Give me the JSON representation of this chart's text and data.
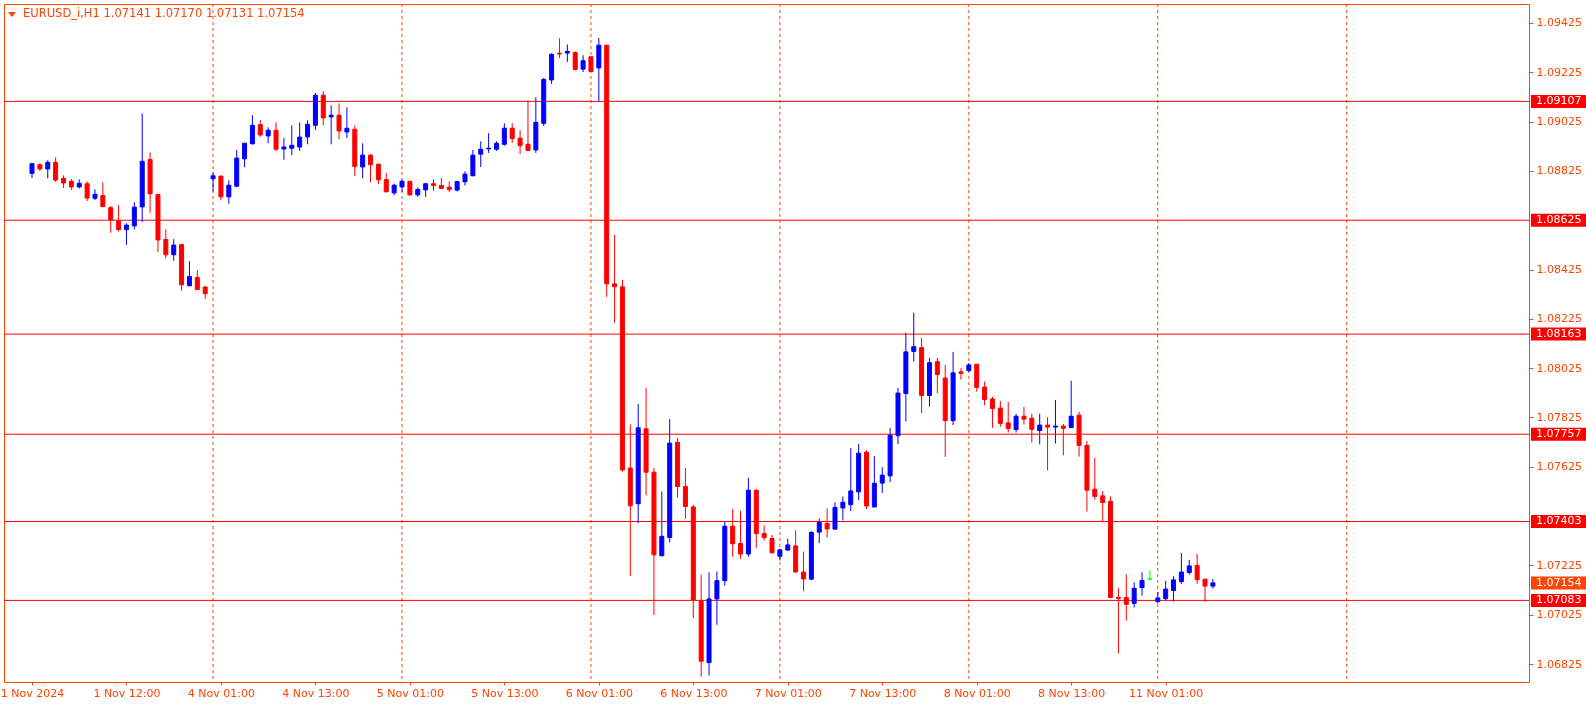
{
  "chart_data": {
    "type": "candlestick",
    "title": "EURUSD_i,H1 1.07141 1.07170 1.07131 1.07154",
    "categories": [
      "1 Nov 2024",
      null,
      null,
      null,
      null,
      null,
      null,
      null,
      null,
      null,
      null,
      null,
      "1 Nov 12:00",
      null,
      null,
      null,
      null,
      null,
      null,
      null,
      null,
      null,
      null,
      null,
      "4 Nov 01:00",
      null,
      null,
      null,
      null,
      null,
      null,
      null,
      null,
      null,
      null,
      null,
      "4 Nov 13:00",
      null,
      null,
      null,
      null,
      null,
      null,
      null,
      null,
      null,
      null,
      null,
      "5 Nov 01:00",
      null,
      null,
      null,
      null,
      null,
      null,
      null,
      null,
      null,
      null,
      null,
      "5 Nov 13:00",
      null,
      null,
      null,
      null,
      null,
      null,
      null,
      null,
      null,
      null,
      null,
      "6 Nov 01:00",
      null,
      null,
      null,
      null,
      null,
      null,
      null,
      null,
      null,
      null,
      null,
      "6 Nov 13:00",
      null,
      null,
      null,
      null,
      null,
      null,
      null,
      null,
      null,
      null,
      null,
      "7 Nov 01:00",
      null,
      null,
      null,
      null,
      null,
      null,
      null,
      null,
      null,
      null,
      null,
      "7 Nov 13:00",
      null,
      null,
      null,
      null,
      null,
      null,
      null,
      null,
      null,
      null,
      null,
      "8 Nov 01:00",
      null,
      null,
      null,
      null,
      null,
      null,
      null,
      null,
      null,
      null,
      null,
      "8 Nov 13:00",
      null,
      null,
      null,
      null,
      null,
      null,
      null,
      null,
      null,
      null,
      null,
      "11 Nov 01:00",
      null,
      null,
      null,
      null,
      null,
      null,
      null,
      null,
      null,
      null,
      null,
      null,
      null,
      null,
      null,
      null,
      null,
      null,
      null,
      null,
      null,
      null,
      null,
      null,
      null,
      null,
      null,
      null,
      null,
      null,
      null,
      null,
      null,
      null,
      null,
      null,
      null,
      null,
      null,
      null,
      null,
      null,
      null,
      null,
      null,
      null
    ],
    "ohlc": [
      [
        1.08815,
        1.08858,
        1.08796,
        1.08854
      ],
      [
        1.0885,
        1.08856,
        1.08825,
        1.08833
      ],
      [
        1.08833,
        1.08868,
        1.08795,
        1.0886
      ],
      [
        1.0886,
        1.0888,
        1.0878,
        1.08788
      ],
      [
        1.08795,
        1.08807,
        1.08756,
        1.08776
      ],
      [
        1.08783,
        1.08792,
        1.08748,
        1.0876
      ],
      [
        1.0876,
        1.08791,
        1.08754,
        1.08775
      ],
      [
        1.08773,
        1.08783,
        1.08703,
        1.08715
      ],
      [
        1.08714,
        1.0875,
        1.08707,
        1.0873
      ],
      [
        1.08725,
        1.08779,
        1.08679,
        1.0868
      ],
      [
        1.08676,
        1.08682,
        1.08574,
        1.08626
      ],
      [
        1.08622,
        1.08686,
        1.08579,
        1.08587
      ],
      [
        1.08587,
        1.08613,
        1.08525,
        1.08605
      ],
      [
        1.08602,
        1.08698,
        1.08587,
        1.08678
      ],
      [
        1.08679,
        1.09058,
        1.08618,
        1.08864
      ],
      [
        1.08871,
        1.089,
        1.08655,
        1.08732
      ],
      [
        1.08729,
        1.08729,
        1.08495,
        1.08545
      ],
      [
        1.08547,
        1.08588,
        1.08471,
        1.08485
      ],
      [
        1.08485,
        1.08548,
        1.0846,
        1.08524
      ],
      [
        1.08526,
        1.08526,
        1.08339,
        1.08363
      ],
      [
        1.08359,
        1.08459,
        1.08359,
        1.08397
      ],
      [
        1.08393,
        1.08422,
        1.08343,
        1.08344
      ],
      [
        1.08354,
        1.08358,
        1.08306,
        1.08327
      ],
      [
        1.08793,
        1.08818,
        1.08742,
        1.08805
      ],
      [
        1.08804,
        1.08805,
        1.08706,
        1.0872
      ],
      [
        1.0872,
        1.08787,
        1.08692,
        1.08767
      ],
      [
        1.08763,
        1.0891,
        1.0876,
        1.08877
      ],
      [
        1.08874,
        1.0894,
        1.0884,
        1.08937
      ],
      [
        1.08935,
        1.09051,
        1.08932,
        1.0901
      ],
      [
        1.09013,
        1.09032,
        1.08963,
        1.08971
      ],
      [
        1.08967,
        1.09002,
        1.08937,
        1.0899
      ],
      [
        1.0899,
        1.09022,
        1.08905,
        1.08913
      ],
      [
        1.08914,
        1.08958,
        1.0887,
        1.08922
      ],
      [
        1.08917,
        1.0901,
        1.08889,
        1.08929
      ],
      [
        1.08922,
        1.09022,
        1.08906,
        1.08962
      ],
      [
        1.08963,
        1.0903,
        1.08933,
        1.09014
      ],
      [
        1.0901,
        1.09141,
        1.08991,
        1.09132
      ],
      [
        1.09132,
        1.09148,
        1.0901,
        1.0904
      ],
      [
        1.09044,
        1.09091,
        1.08933,
        1.09051
      ],
      [
        1.09051,
        1.09099,
        1.08954,
        1.08987
      ],
      [
        1.08983,
        1.09083,
        1.08958,
        1.08998
      ],
      [
        1.08994,
        1.09009,
        1.08805,
        1.08843
      ],
      [
        1.08841,
        1.08937,
        1.08795,
        1.08889
      ],
      [
        1.08889,
        1.08893,
        1.08779,
        1.0885
      ],
      [
        1.08852,
        1.08855,
        1.08771,
        1.08789
      ],
      [
        1.0879,
        1.08816,
        1.0874,
        1.0874
      ],
      [
        1.08736,
        1.08773,
        1.08727,
        1.08767
      ],
      [
        1.0876,
        1.08789,
        1.08739,
        1.08783
      ],
      [
        1.08783,
        1.08783,
        1.08724,
        1.08728
      ],
      [
        1.08728,
        1.08758,
        1.0872,
        1.0875
      ],
      [
        1.08748,
        1.08774,
        1.0872,
        1.08773
      ],
      [
        1.08773,
        1.08792,
        1.08744,
        1.08766
      ],
      [
        1.08766,
        1.08796,
        1.08751,
        1.08754
      ],
      [
        1.08759,
        1.08783,
        1.08739,
        1.0875
      ],
      [
        1.08747,
        1.08785,
        1.08742,
        1.08782
      ],
      [
        1.08781,
        1.08824,
        1.08766,
        1.08812
      ],
      [
        1.08805,
        1.0891,
        1.08805,
        1.08889
      ],
      [
        1.08893,
        1.08945,
        1.08841,
        1.08913
      ],
      [
        1.08914,
        1.08978,
        1.08898,
        1.08917
      ],
      [
        1.08913,
        1.08945,
        1.08906,
        1.08937
      ],
      [
        1.08933,
        1.09018,
        1.08927,
        1.08998
      ],
      [
        1.08998,
        1.09018,
        1.08939,
        1.08956
      ],
      [
        1.08958,
        1.0899,
        1.08893,
        1.08927
      ],
      [
        1.08933,
        1.09111,
        1.08908,
        1.08908
      ],
      [
        1.0891,
        1.09124,
        1.08898,
        1.09022
      ],
      [
        1.09018,
        1.09203,
        1.09007,
        1.09196
      ],
      [
        1.09194,
        1.09302,
        1.09178,
        1.09298
      ],
      [
        1.09302,
        1.09363,
        1.09283,
        1.09299
      ],
      [
        1.09303,
        1.09338,
        1.09267,
        1.0931
      ],
      [
        1.09305,
        1.0931,
        1.09233,
        1.09236
      ],
      [
        1.09238,
        1.09294,
        1.09226,
        1.09272
      ],
      [
        1.09288,
        1.09288,
        1.09228,
        1.09228
      ],
      [
        1.09243,
        1.09364,
        1.09106,
        1.09335
      ],
      [
        1.09335,
        1.09335,
        1.08314,
        1.08367
      ],
      [
        1.08367,
        1.08566,
        1.08209,
        1.08355
      ],
      [
        1.08355,
        1.08383,
        1.07605,
        1.07612
      ],
      [
        1.0762,
        1.07796,
        1.07182,
        1.07467
      ],
      [
        1.07475,
        1.0788,
        1.07396,
        1.07783
      ],
      [
        1.07779,
        1.07945,
        1.07509,
        1.07603
      ],
      [
        1.07603,
        1.0762,
        1.07024,
        1.07268
      ],
      [
        1.07264,
        1.07525,
        1.07264,
        1.07343
      ],
      [
        1.07338,
        1.07819,
        1.07318,
        1.07721
      ],
      [
        1.07724,
        1.07741,
        1.075,
        1.07545
      ],
      [
        1.07545,
        1.0762,
        1.07414,
        1.07464
      ],
      [
        1.07462,
        1.0747,
        1.07011,
        1.07085
      ],
      [
        1.0708,
        1.07188,
        1.06773,
        1.06836
      ],
      [
        1.06831,
        1.07197,
        1.06778,
        1.07089
      ],
      [
        1.07089,
        1.072,
        1.06984,
        1.07163
      ],
      [
        1.07163,
        1.07404,
        1.07143,
        1.07384
      ],
      [
        1.07384,
        1.07454,
        1.0726,
        1.07313
      ],
      [
        1.07314,
        1.07447,
        1.07251,
        1.07271
      ],
      [
        1.07271,
        1.0758,
        1.0726,
        1.0753
      ],
      [
        1.0753,
        1.07534,
        1.07296,
        1.07354
      ],
      [
        1.07354,
        1.07387,
        1.07326,
        1.07338
      ],
      [
        1.07334,
        1.07348,
        1.07273,
        1.07276
      ],
      [
        1.07262,
        1.07292,
        1.07245,
        1.07288
      ],
      [
        1.07287,
        1.07334,
        1.07287,
        1.07308
      ],
      [
        1.07304,
        1.07367,
        1.07197,
        1.07198
      ],
      [
        1.07198,
        1.07281,
        1.0712,
        1.0717
      ],
      [
        1.07169,
        1.07363,
        1.07165,
        1.07359
      ],
      [
        1.0736,
        1.07414,
        1.07315,
        1.07399
      ],
      [
        1.07395,
        1.07456,
        1.07338,
        1.07373
      ],
      [
        1.07372,
        1.07481,
        1.07372,
        1.0746
      ],
      [
        1.07458,
        1.07505,
        1.07407,
        1.07481
      ],
      [
        1.07471,
        1.07701,
        1.07445,
        1.07527
      ],
      [
        1.07523,
        1.07717,
        1.0749,
        1.0768
      ],
      [
        1.07684,
        1.07692,
        1.07454,
        1.07466
      ],
      [
        1.07462,
        1.07668,
        1.07462,
        1.07558
      ],
      [
        1.07559,
        1.07623,
        1.07519,
        1.07591
      ],
      [
        1.07588,
        1.07782,
        1.07563,
        1.07753
      ],
      [
        1.07751,
        1.07945,
        1.07717,
        1.07924
      ],
      [
        1.07922,
        1.08169,
        1.07808,
        1.08091
      ],
      [
        1.08093,
        1.0825,
        1.08052,
        1.08112
      ],
      [
        1.08108,
        1.08148,
        1.07843,
        1.07914
      ],
      [
        1.07914,
        1.08067,
        1.07869,
        1.08047
      ],
      [
        1.08051,
        1.08067,
        1.07924,
        1.07999
      ],
      [
        1.07985,
        1.08038,
        1.07665,
        1.07812
      ],
      [
        1.07812,
        1.08091,
        1.07794,
        1.08006
      ],
      [
        1.0801,
        1.08026,
        1.07979,
        1.08004
      ],
      [
        1.08015,
        1.08046,
        1.08009,
        1.08038
      ],
      [
        1.08041,
        1.08041,
        1.0793,
        1.07947
      ],
      [
        1.07948,
        1.0797,
        1.07874,
        1.07898
      ],
      [
        1.079,
        1.07909,
        1.07783,
        1.07861
      ],
      [
        1.07863,
        1.07892,
        1.07788,
        1.07801
      ],
      [
        1.07803,
        1.07888,
        1.07764,
        1.0778
      ],
      [
        1.07776,
        1.0784,
        1.07764,
        1.0783
      ],
      [
        1.0783,
        1.07868,
        1.07796,
        1.07818
      ],
      [
        1.07822,
        1.0784,
        1.07723,
        1.07777
      ],
      [
        1.07772,
        1.0784,
        1.07716,
        1.07794
      ],
      [
        1.07794,
        1.07826,
        1.0761,
        1.07786
      ],
      [
        1.07786,
        1.07896,
        1.07719,
        1.0779
      ],
      [
        1.0779,
        1.07799,
        1.07671,
        1.07781
      ],
      [
        1.07784,
        1.07974,
        1.07784,
        1.0783
      ],
      [
        1.07834,
        1.07848,
        1.07666,
        1.07712
      ],
      [
        1.07712,
        1.0773,
        1.07443,
        1.0753
      ],
      [
        1.07534,
        1.07661,
        1.07492,
        1.07505
      ],
      [
        1.07507,
        1.07526,
        1.074,
        1.0748
      ],
      [
        1.07485,
        1.07505,
        1.07095,
        1.07095
      ],
      [
        1.07095,
        1.07133,
        1.06868,
        1.07091
      ],
      [
        1.07095,
        1.07189,
        1.07001,
        1.07067
      ],
      [
        1.07071,
        1.07156,
        1.07054,
        1.07132
      ],
      [
        1.07135,
        1.07197,
        1.07102,
        1.07164
      ],
      [
        1.0717,
        1.07206,
        1.07163,
        1.0717
      ],
      [
        1.07078,
        1.07117,
        1.07071,
        1.07093
      ],
      [
        1.0709,
        1.07162,
        1.07083,
        1.07129
      ],
      [
        1.07123,
        1.07181,
        1.07078,
        1.07166
      ],
      [
        1.07159,
        1.07275,
        1.0715,
        1.07198
      ],
      [
        1.07196,
        1.07247,
        1.07188,
        1.07223
      ],
      [
        1.07225,
        1.07271,
        1.0715,
        1.07167
      ],
      [
        1.07169,
        1.07169,
        1.07077,
        1.07141
      ],
      [
        1.07141,
        1.0717,
        1.07131,
        1.07154
      ],
      null,
      null,
      null,
      null,
      null,
      null,
      null,
      null,
      null,
      null,
      null,
      null,
      null,
      null,
      null,
      null,
      null,
      null,
      null,
      null,
      null,
      null,
      null,
      null,
      null,
      null,
      null,
      null,
      null,
      null,
      null,
      null,
      null,
      null,
      null,
      null,
      null,
      null,
      null,
      null
    ],
    "colors": [
      "#0000ff",
      "#ff0000",
      "#0000ff",
      "#ff0000",
      "#ff0000",
      "#ff0000",
      "#0000ff",
      "#ff0000",
      "#0000ff",
      "#ff0000",
      "#ff0000",
      "#ff0000",
      "#0000ff",
      "#0000ff",
      "#0000ff",
      "#ff0000",
      "#ff0000",
      "#ff0000",
      "#0000ff",
      "#ff0000",
      "#0000ff",
      "#ff0000",
      "#ff0000",
      "#0000ff",
      "#ff0000",
      "#0000ff",
      "#0000ff",
      "#0000ff",
      "#0000ff",
      "#ff0000",
      "#0000ff",
      "#ff0000",
      "#0000ff",
      "#0000ff",
      "#0000ff",
      "#0000ff",
      "#0000ff",
      "#ff0000",
      "#0000ff",
      "#ff0000",
      "#0000ff",
      "#ff0000",
      "#0000ff",
      "#ff0000",
      "#ff0000",
      "#ff0000",
      "#0000ff",
      "#0000ff",
      "#ff0000",
      "#0000ff",
      "#0000ff",
      "#ff0000",
      "#ff0000",
      "#ff0000",
      "#0000ff",
      "#0000ff",
      "#0000ff",
      "#0000ff",
      "#0000ff",
      "#0000ff",
      "#0000ff",
      "#ff0000",
      "#ff0000",
      "#ff0000",
      "#0000ff",
      "#0000ff",
      "#0000ff",
      "#ff0000",
      "#0000ff",
      "#ff0000",
      "#0000ff",
      "#ff0000",
      "#0000ff",
      "#ff0000",
      "#ff0000",
      "#ff0000",
      "#ff0000",
      "#0000ff",
      "#ff0000",
      "#ff0000",
      "#0000ff",
      "#0000ff",
      "#ff0000",
      "#ff0000",
      "#ff0000",
      "#ff0000",
      "#0000ff",
      "#0000ff",
      "#0000ff",
      "#ff0000",
      "#ff0000",
      "#0000ff",
      "#ff0000",
      "#ff0000",
      "#ff0000",
      "#0000ff",
      "#0000ff",
      "#ff0000",
      "#ff0000",
      "#0000ff",
      "#0000ff",
      "#ff0000",
      "#0000ff",
      "#0000ff",
      "#0000ff",
      "#0000ff",
      "#ff0000",
      "#0000ff",
      "#0000ff",
      "#0000ff",
      "#0000ff",
      "#0000ff",
      "#0000ff",
      "#ff0000",
      "#0000ff",
      "#ff0000",
      "#ff0000",
      "#0000ff",
      "#ff0000",
      "#0000ff",
      "#ff0000",
      "#ff0000",
      "#ff0000",
      "#ff0000",
      "#ff0000",
      "#0000ff",
      "#ff0000",
      "#ff0000",
      "#0000ff",
      "#ff0000",
      "#0000ff",
      "#ff0000",
      "#0000ff",
      "#ff0000",
      "#ff0000",
      "#ff0000",
      "#ff0000",
      "#ff0000",
      "#ff0000",
      "#ff0000",
      "#0000ff",
      "#0000ff",
      "#00ff00",
      "#0000ff",
      "#0000ff",
      "#0000ff",
      "#0000ff",
      "#0000ff",
      "#ff0000",
      "#ff0000",
      "#0000ff",
      null,
      null,
      null,
      null,
      null,
      null,
      null,
      null,
      null,
      null,
      null,
      null,
      null,
      null,
      null,
      null,
      null,
      null,
      null,
      null,
      null,
      null,
      null,
      null,
      null,
      null,
      null,
      null,
      null,
      null,
      null,
      null,
      null,
      null,
      null,
      null,
      null,
      null,
      null,
      null
    ],
    "ylim": [
      1.06752,
      1.09502
    ],
    "yticks": [
      1.06825,
      1.07025,
      1.07225,
      1.07625,
      1.07825,
      1.08025,
      1.08225,
      1.08425,
      1.08825,
      1.09025,
      1.09225,
      1.09425
    ],
    "ref_lines": [
      {
        "axis": "y",
        "value": 1.09107,
        "label": "1.09107",
        "color": "#ff0000"
      },
      {
        "axis": "y",
        "value": 1.08625,
        "label": "1.08625",
        "color": "#ff0000"
      },
      {
        "axis": "y",
        "value": 1.08163,
        "label": "1.08163",
        "color": "#ff0000"
      },
      {
        "axis": "y",
        "value": 1.07757,
        "label": "1.07757",
        "color": "#ff0000"
      },
      {
        "axis": "y",
        "value": 1.07403,
        "label": "1.07403",
        "color": "#ff0000"
      },
      {
        "axis": "y",
        "value": 1.07083,
        "label": "1.07083",
        "color": "#ff0000"
      }
    ],
    "annotations": [
      "1.07154"
    ]
  }
}
